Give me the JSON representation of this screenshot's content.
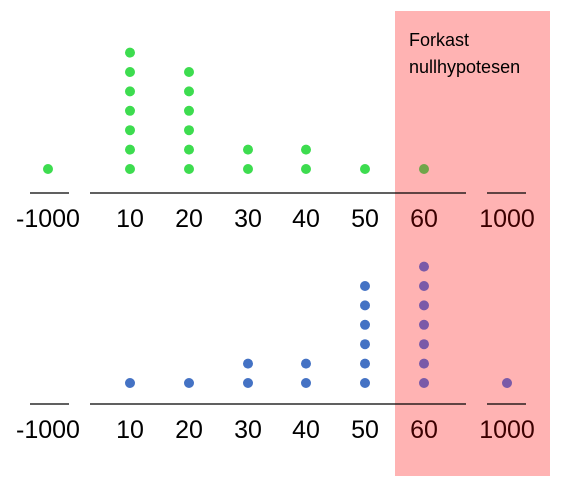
{
  "chart_data": {
    "type": "dot-plot",
    "rejection_region": {
      "label_lines": [
        "Forkast",
        "nullhypotesen"
      ],
      "color": "#ffb3b3",
      "from_category": "60"
    },
    "categories": [
      "-1000",
      "10",
      "20",
      "30",
      "40",
      "50",
      "60",
      "1000"
    ],
    "panels": [
      {
        "color": "#3ddc4f",
        "overlap_color": "#6fa64a",
        "counts": [
          1,
          7,
          6,
          2,
          2,
          1,
          1,
          0
        ]
      },
      {
        "color": "#4472c4",
        "overlap_color": "#7a5aa8",
        "counts": [
          0,
          1,
          1,
          2,
          2,
          6,
          7,
          1
        ]
      }
    ]
  }
}
